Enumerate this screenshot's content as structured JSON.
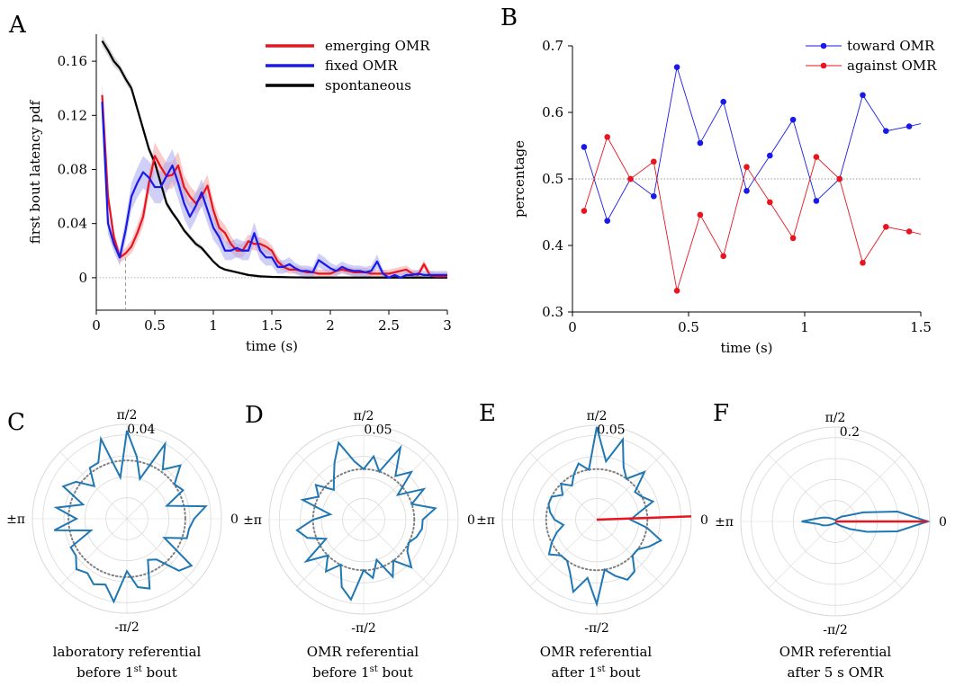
{
  "panel_labels": [
    "A",
    "B",
    "C",
    "D",
    "E",
    "F"
  ],
  "chart_data": [
    {
      "id": "A",
      "type": "line",
      "xlabel": "time (s)",
      "ylabel": "first bout latency pdf",
      "xlim": [
        0,
        3
      ],
      "ylim": [
        -0.024,
        0.18
      ],
      "xticks": [
        0,
        0.5,
        1,
        1.5,
        2,
        2.5,
        3
      ],
      "xtick_labels": [
        "0",
        "0.5",
        "1",
        "1.5",
        "2",
        "2.5",
        "3"
      ],
      "yticks": [
        0,
        0.04,
        0.08,
        0.12,
        0.16
      ],
      "ytick_labels": [
        "0",
        "0.04",
        "0.08",
        "0.12",
        "0.16"
      ],
      "reference_vline_x": 0.25,
      "legend_position": "top-right",
      "x": [
        0.05,
        0.1,
        0.15,
        0.2,
        0.25,
        0.3,
        0.35,
        0.4,
        0.45,
        0.5,
        0.55,
        0.6,
        0.65,
        0.7,
        0.75,
        0.8,
        0.85,
        0.9,
        0.95,
        1.0,
        1.05,
        1.1,
        1.15,
        1.2,
        1.25,
        1.3,
        1.35,
        1.4,
        1.45,
        1.5,
        1.55,
        1.6,
        1.65,
        1.7,
        1.75,
        1.8,
        1.85,
        1.9,
        1.95,
        2.0,
        2.05,
        2.1,
        2.15,
        2.2,
        2.25,
        2.3,
        2.35,
        2.4,
        2.45,
        2.5,
        2.55,
        2.6,
        2.65,
        2.7,
        2.75,
        2.8,
        2.85,
        2.9,
        2.95,
        3.0
      ],
      "series": [
        {
          "name": "emerging OMR",
          "color": "#e8141e",
          "band_color": "#f4a0a0",
          "values": [
            0.135,
            0.06,
            0.03,
            0.015,
            0.018,
            0.023,
            0.033,
            0.045,
            0.07,
            0.09,
            0.082,
            0.075,
            0.076,
            0.083,
            0.067,
            0.06,
            0.055,
            0.06,
            0.068,
            0.05,
            0.037,
            0.033,
            0.025,
            0.02,
            0.02,
            0.027,
            0.025,
            0.025,
            0.023,
            0.02,
            0.012,
            0.008,
            0.006,
            0.006,
            0.005,
            0.004,
            0.004,
            0.003,
            0.003,
            0.003,
            0.005,
            0.006,
            0.005,
            0.004,
            0.004,
            0.004,
            0.003,
            0.003,
            0.003,
            0.003,
            0.004,
            0.005,
            0.006,
            0.003,
            0.002,
            0.01,
            0.002,
            0.001,
            0.001,
            0.001
          ],
          "band": [
            0.009,
            0.006,
            0.005,
            0.004,
            0.004,
            0.005,
            0.006,
            0.007,
            0.008,
            0.01,
            0.01,
            0.01,
            0.01,
            0.01,
            0.009,
            0.008,
            0.008,
            0.008,
            0.008,
            0.007,
            0.007,
            0.006,
            0.006,
            0.005,
            0.005,
            0.005,
            0.005,
            0.005,
            0.005,
            0.004,
            0.004,
            0.003,
            0.003,
            0.003,
            0.003,
            0.003,
            0.003,
            0.003,
            0.003,
            0.003,
            0.003,
            0.003,
            0.003,
            0.003,
            0.003,
            0.003,
            0.003,
            0.003,
            0.003,
            0.003,
            0.003,
            0.003,
            0.003,
            0.003,
            0.003,
            0.003,
            0.003,
            0.003,
            0.003,
            0.003
          ]
        },
        {
          "name": "fixed OMR",
          "color": "#1a1ae8",
          "band_color": "#a8a8f0",
          "values": [
            0.13,
            0.04,
            0.025,
            0.015,
            0.035,
            0.06,
            0.07,
            0.078,
            0.074,
            0.067,
            0.067,
            0.075,
            0.083,
            0.07,
            0.055,
            0.045,
            0.053,
            0.063,
            0.05,
            0.037,
            0.03,
            0.02,
            0.02,
            0.022,
            0.02,
            0.02,
            0.033,
            0.02,
            0.015,
            0.015,
            0.008,
            0.008,
            0.01,
            0.007,
            0.005,
            0.005,
            0.004,
            0.013,
            0.01,
            0.007,
            0.005,
            0.008,
            0.006,
            0.005,
            0.005,
            0.004,
            0.005,
            0.012,
            0.003,
            0.0,
            0.002,
            0.0,
            0.002,
            0.002,
            0.003,
            0.002,
            0.002,
            0.002,
            0.002,
            0.002
          ],
          "band": [
            0.01,
            0.008,
            0.006,
            0.006,
            0.008,
            0.01,
            0.011,
            0.012,
            0.012,
            0.012,
            0.012,
            0.012,
            0.012,
            0.012,
            0.011,
            0.01,
            0.01,
            0.01,
            0.01,
            0.009,
            0.008,
            0.007,
            0.007,
            0.007,
            0.007,
            0.007,
            0.008,
            0.007,
            0.006,
            0.006,
            0.005,
            0.005,
            0.005,
            0.004,
            0.004,
            0.004,
            0.004,
            0.005,
            0.005,
            0.004,
            0.004,
            0.004,
            0.004,
            0.004,
            0.004,
            0.004,
            0.004,
            0.005,
            0.003,
            0.003,
            0.003,
            0.003,
            0.003,
            0.003,
            0.003,
            0.003,
            0.003,
            0.003,
            0.003,
            0.003
          ]
        },
        {
          "name": "spontaneous",
          "color": "#000000",
          "band_color": "#b8b8b8",
          "values": [
            0.175,
            0.168,
            0.16,
            0.155,
            0.147,
            0.14,
            0.125,
            0.11,
            0.095,
            0.085,
            0.07,
            0.055,
            0.048,
            0.042,
            0.035,
            0.03,
            0.025,
            0.022,
            0.017,
            0.012,
            0.008,
            0.006,
            0.005,
            0.004,
            0.003,
            0.002,
            0.0015,
            0.001,
            0.0008,
            0.0006,
            0.0005,
            0.0004,
            0.0003,
            0.0002,
            0.0002,
            0.0001,
            0.0001,
            0.0001,
            0.0001,
            0.0001,
            0.0001,
            0.0001,
            0.0001,
            0.0001,
            0.0001,
            0.0001,
            0.0001,
            0.0001,
            0.0001,
            0.0001,
            0.0001,
            0.0001,
            0.0001,
            0.0001,
            0.0001,
            0.0001,
            0.0001,
            0.0001,
            0.0001,
            0.0001
          ],
          "band": [
            0.004,
            0.004,
            0.004,
            0.003,
            0.003,
            0.003,
            0.003,
            0.003,
            0.003,
            0.003,
            0.003,
            0.003,
            0.002,
            0.002,
            0.002,
            0.002,
            0.002,
            0.002,
            0.002,
            0.001,
            0.001,
            0.001,
            0.001,
            0.001,
            0.001,
            0.001,
            0.001,
            0.001,
            0.001,
            0.001,
            0.001,
            0.001,
            0.001,
            0.001,
            0.001,
            0.001,
            0.001,
            0.001,
            0.001,
            0.001,
            0.001,
            0.001,
            0.001,
            0.001,
            0.001,
            0.001,
            0.001,
            0.001,
            0.001,
            0.001,
            0.001,
            0.001,
            0.001,
            0.001,
            0.001,
            0.001,
            0.001,
            0.001,
            0.001,
            0.001
          ]
        }
      ]
    },
    {
      "id": "B",
      "type": "line",
      "xlabel": "time (s)",
      "ylabel": "percentage",
      "xlim": [
        0,
        1.5
      ],
      "ylim": [
        0.3,
        0.7
      ],
      "xticks": [
        0,
        0.5,
        1,
        1.5
      ],
      "xtick_labels": [
        "0",
        "0.5",
        "1",
        "1.5"
      ],
      "yticks": [
        0.3,
        0.4,
        0.5,
        0.6,
        0.7
      ],
      "ytick_labels": [
        "0.3",
        "0.4",
        "0.5",
        "0.6",
        "0.7"
      ],
      "reference_hline_y": 0.5,
      "legend_position": "top-right",
      "x": [
        0.05,
        0.15,
        0.25,
        0.35,
        0.45,
        0.55,
        0.65,
        0.75,
        0.85,
        0.95,
        1.05,
        1.15,
        1.25,
        1.35,
        1.45
      ],
      "x_tail": 1.5,
      "series": [
        {
          "name": "toward OMR",
          "color": "#1a1ae8",
          "values": [
            0.548,
            0.437,
            0.5,
            0.474,
            0.668,
            0.554,
            0.616,
            0.482,
            0.535,
            0.589,
            0.467,
            0.5,
            0.626,
            0.572,
            0.579
          ],
          "tail_value": 0.583
        },
        {
          "name": "against OMR",
          "color": "#e8141e",
          "values": [
            0.452,
            0.563,
            0.5,
            0.526,
            0.332,
            0.446,
            0.384,
            0.518,
            0.465,
            0.411,
            0.533,
            0.5,
            0.374,
            0.428,
            0.421
          ],
          "tail_value": 0.417
        }
      ]
    },
    {
      "id": "C",
      "type": "polar",
      "rmax": 0.045,
      "radial_label": "0.04",
      "radial_label_value": 0.04,
      "radial_grid": [
        0.01,
        0.02,
        0.03,
        0.04
      ],
      "angle_labels": {
        "top": "π/2",
        "right": "0",
        "bottom": "-π/2",
        "left": "±π"
      },
      "uniform_circle_r": 0.0278,
      "caption_line1": "laboratory referential",
      "caption_line2_prefix": "before 1",
      "caption_sup": "st",
      "caption_line2_suffix": " bout",
      "radii": [
        0.032,
        0.038,
        0.02,
        0.03,
        0.028,
        0.036,
        0.029,
        0.04,
        0.02,
        0.03,
        0.042,
        0.02,
        0.04,
        0.03,
        0.03,
        0.022,
        0.03,
        0.034,
        0.022,
        0.034,
        0.024,
        0.035,
        0.018,
        0.03,
        0.03,
        0.034,
        0.032,
        0.035,
        0.033,
        0.04,
        0.025,
        0.033,
        0.035,
        0.022,
        0.024,
        0.035,
        0.038,
        0.02,
        0.03,
        0.03
      ]
    },
    {
      "id": "D",
      "type": "polar",
      "rmax": 0.056,
      "radial_label": "0.05",
      "radial_label_value": 0.05,
      "radial_grid": [
        0.0125,
        0.025,
        0.0375,
        0.05
      ],
      "angle_labels": {
        "top": "π/2",
        "right": "0",
        "bottom": "-π/2",
        "left": "±π"
      },
      "uniform_circle_r": 0.03,
      "caption_line1": "OMR referential",
      "caption_line2_prefix": "before 1",
      "caption_sup": "st",
      "caption_line2_suffix": " bout",
      "radii": [
        0.035,
        0.043,
        0.03,
        0.04,
        0.025,
        0.04,
        0.032,
        0.048,
        0.03,
        0.038,
        0.03,
        0.035,
        0.048,
        0.038,
        0.03,
        0.025,
        0.035,
        0.03,
        0.038,
        0.02,
        0.03,
        0.04,
        0.035,
        0.025,
        0.042,
        0.03,
        0.038,
        0.03,
        0.042,
        0.048,
        0.03,
        0.035,
        0.025,
        0.038,
        0.03,
        0.04,
        0.032,
        0.03,
        0.033,
        0.035
      ]
    },
    {
      "id": "E",
      "type": "polar",
      "rmax": 0.056,
      "radial_label": "0.05",
      "radial_label_value": 0.05,
      "radial_grid": [
        0.0125,
        0.025,
        0.0375,
        0.05
      ],
      "angle_labels": {
        "top": "π/2",
        "right": "0",
        "bottom": "-π/2",
        "left": "±π"
      },
      "uniform_circle_r": 0.03,
      "mean_vector": {
        "angle_deg": 2,
        "length": 0.056,
        "color": "#e8141e"
      },
      "caption_line1": "OMR referential",
      "caption_line2_prefix": "after 1",
      "caption_sup": "st",
      "caption_line2_suffix": " bout",
      "radii": [
        0.02,
        0.025,
        0.035,
        0.03,
        0.028,
        0.04,
        0.03,
        0.035,
        0.05,
        0.035,
        0.055,
        0.03,
        0.035,
        0.03,
        0.025,
        0.03,
        0.025,
        0.03,
        0.03,
        0.028,
        0.025,
        0.02,
        0.025,
        0.03,
        0.035,
        0.03,
        0.03,
        0.035,
        0.045,
        0.035,
        0.05,
        0.03,
        0.035,
        0.04,
        0.038,
        0.03,
        0.03,
        0.035,
        0.04,
        0.03
      ]
    },
    {
      "id": "F",
      "type": "polar",
      "rmax": 0.225,
      "radial_label": "0.2",
      "radial_label_value": 0.2,
      "radial_grid": [
        0.05,
        0.1,
        0.15,
        0.2
      ],
      "angle_labels": {
        "top": "π/2",
        "right": "0",
        "bottom": "-π/2",
        "left": "±π"
      },
      "mean_vector": {
        "angle_deg": 0,
        "length": 0.22,
        "color": "#e8141e"
      },
      "caption_line1": "OMR referential",
      "caption_line2_prefix": "after 5 s OMR",
      "caption_sup": "",
      "caption_line2_suffix": "",
      "radii": [
        0.22,
        0.15,
        0.07,
        0.03,
        0.02,
        0.012,
        0.008,
        0.006,
        0.005,
        0.004,
        0.004,
        0.004,
        0.004,
        0.005,
        0.006,
        0.008,
        0.012,
        0.02,
        0.03,
        0.045,
        0.08,
        0.04,
        0.03,
        0.02,
        0.012,
        0.008,
        0.006,
        0.005,
        0.004,
        0.004,
        0.004,
        0.004,
        0.005,
        0.006,
        0.008,
        0.012,
        0.02,
        0.04,
        0.08,
        0.15
      ]
    }
  ],
  "colors": {
    "polar_line": "#1f77b4",
    "grid": "#d9d9d9",
    "reference": "#808080"
  }
}
